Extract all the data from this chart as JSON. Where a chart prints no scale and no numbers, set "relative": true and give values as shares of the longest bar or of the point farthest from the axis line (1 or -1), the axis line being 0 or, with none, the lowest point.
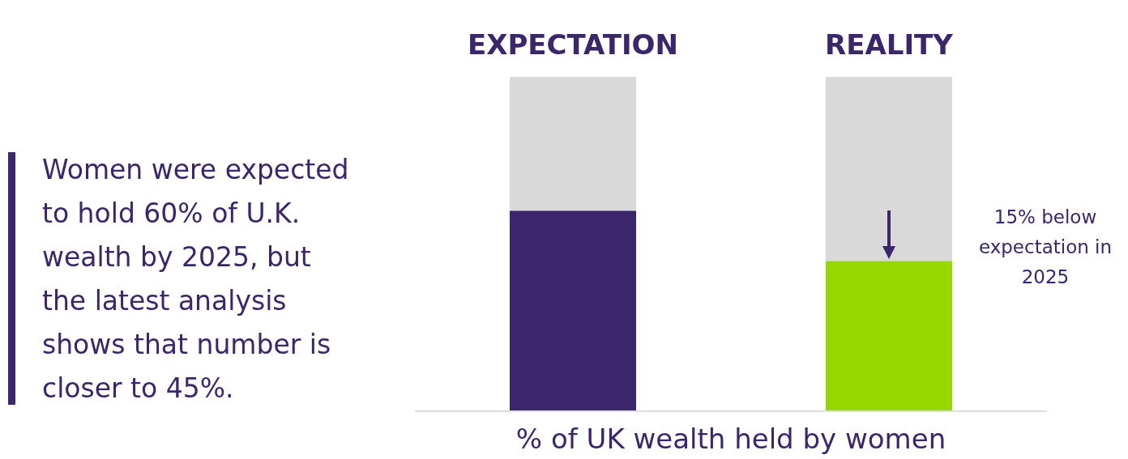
{
  "chart_data": {
    "type": "bar",
    "stacked": true,
    "relative": true,
    "xlabel": "% of UK wealth held by women",
    "categories": [
      "EXPECTATION",
      "REALITY"
    ],
    "series": [
      {
        "colors": [
          "#3b256b",
          "#97d700"
        ],
        "values": [
          0.6,
          0.45
        ]
      },
      {
        "color": "#d9d9d9",
        "values": [
          0.4,
          0.55
        ]
      }
    ],
    "annotations": [
      "Women were expected to hold 60% of U.K. wealth by 2025, but the latest analysis shows that number is closer to 45%.",
      "15% below expectation in 2025"
    ]
  }
}
